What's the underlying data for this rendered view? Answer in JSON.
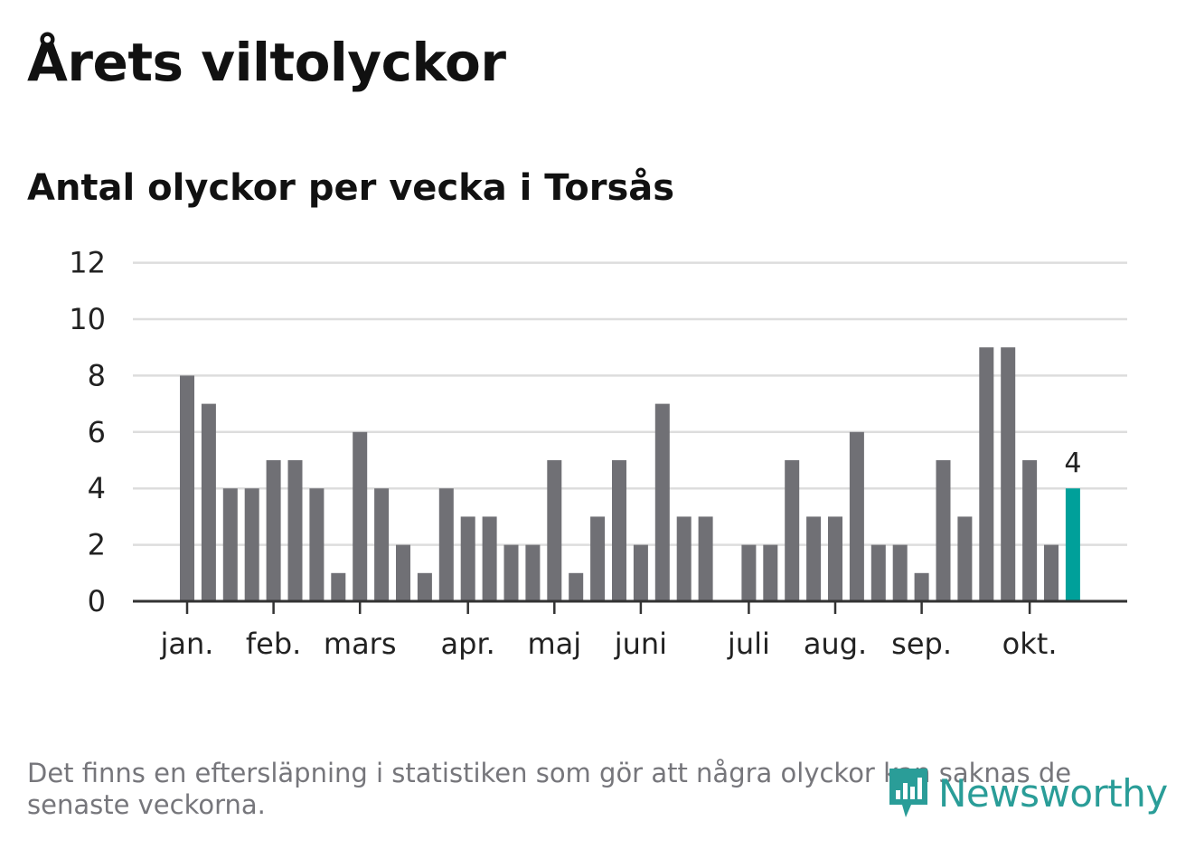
{
  "header": {
    "title": "Årets viltolyckor",
    "subtitle": "Antal olyckor per vecka i Torsås"
  },
  "footer": {
    "note": "Det finns en eftersläpning i statistiken som gör att några olyckor kan saknas de senaste veckorna.",
    "logo_text": "Newsworthy"
  },
  "colors": {
    "bar": "#707075",
    "highlight": "#00a09a",
    "grid": "#dddddd",
    "axis": "#333333",
    "logo": "#2a9d98"
  },
  "icons": {
    "logo": "bar-chart-speech-bubble-icon"
  },
  "chart_data": {
    "type": "bar",
    "title": "Antal olyckor per vecka i Torsås",
    "ylim": [
      0,
      12
    ],
    "yticks": [
      0,
      2,
      4,
      6,
      8,
      10,
      12
    ],
    "grid": true,
    "values": [
      8,
      7,
      4,
      4,
      5,
      5,
      4,
      1,
      6,
      4,
      2,
      1,
      4,
      3,
      3,
      2,
      2,
      5,
      1,
      3,
      5,
      2,
      7,
      3,
      3,
      0,
      2,
      2,
      5,
      3,
      3,
      6,
      2,
      2,
      1,
      5,
      3,
      9,
      9,
      5,
      2,
      4
    ],
    "highlight_index": 41,
    "highlight_label": "4",
    "month_labels": [
      {
        "label": "jan.",
        "week_index": 0
      },
      {
        "label": "feb.",
        "week_index": 4
      },
      {
        "label": "mars",
        "week_index": 8
      },
      {
        "label": "apr.",
        "week_index": 13
      },
      {
        "label": "maj",
        "week_index": 17
      },
      {
        "label": "juni",
        "week_index": 21
      },
      {
        "label": "juli",
        "week_index": 26
      },
      {
        "label": "aug.",
        "week_index": 30
      },
      {
        "label": "sep.",
        "week_index": 34
      },
      {
        "label": "okt.",
        "week_index": 39
      }
    ]
  }
}
